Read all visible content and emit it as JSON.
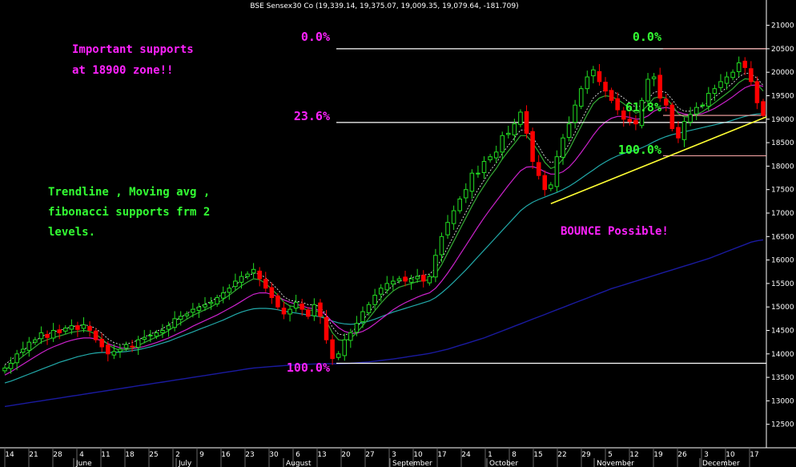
{
  "colors": {
    "background": "#000000",
    "up_candle": "#22dd22",
    "down_candle": "#ff0000",
    "ma_fast": "#33aa33",
    "ma_mid": "#cc22cc",
    "ma_slow": "#22aaaa",
    "ma_long": "#1a1aa0",
    "trendline": "#ffff33",
    "fib_white": "#ffffff",
    "fib_pink": "#ffaaaa",
    "label_magenta": "#ff22ff",
    "label_green": "#33ff33"
  },
  "chart_data": {
    "type": "candlestick",
    "title": "BSE Sensex30 Co (19,339.14, 19,375.07, 19,009.35, 19,079.64, -181.709)",
    "ylim": [
      12000,
      21300
    ],
    "y_ticks": [
      "12500",
      "13000",
      "13500",
      "14000",
      "14500",
      "15000",
      "15500",
      "16000",
      "16500",
      "17000",
      "17500",
      "18000",
      "18500",
      "19000",
      "19500",
      "20000",
      "20500",
      "21000"
    ],
    "x_ticks": [
      "14",
      "21",
      "28",
      "4",
      "11",
      "18",
      "25",
      "2",
      "9",
      "16",
      "23",
      "30",
      "6",
      "13",
      "20",
      "27",
      "3",
      "10",
      "17",
      "24",
      "1",
      "8",
      "15",
      "22",
      "29",
      "5",
      "12",
      "19",
      "26",
      "3",
      "10",
      "17"
    ],
    "months": [
      "June",
      "July",
      "August",
      "September",
      "October",
      "November",
      "December"
    ],
    "candles_close": [
      13700,
      13800,
      14000,
      14100,
      14250,
      14300,
      14450,
      14350,
      14500,
      14450,
      14550,
      14600,
      14520,
      14620,
      14500,
      14300,
      14150,
      14000,
      14050,
      14100,
      14200,
      14150,
      14300,
      14350,
      14400,
      14450,
      14500,
      14600,
      14750,
      14800,
      14850,
      14950,
      15000,
      15050,
      15100,
      15200,
      15300,
      15400,
      15550,
      15650,
      15700,
      15800,
      15600,
      15400,
      15200,
      15000,
      14850,
      14950,
      15100,
      14950,
      14800,
      15050,
      14800,
      14300,
      13900,
      14000,
      14300,
      14450,
      14650,
      14900,
      15050,
      15250,
      15400,
      15500,
      15550,
      15600,
      15550,
      15600,
      15650,
      15550,
      15650,
      16100,
      16500,
      16800,
      17050,
      17300,
      17500,
      17850,
      17850,
      18100,
      18200,
      18300,
      18650,
      18700,
      18900,
      19150,
      18700,
      18100,
      17800,
      17500,
      17600,
      18200,
      18600,
      18900,
      19300,
      19650,
      19900,
      20050,
      19800,
      19600,
      19400,
      19200,
      19000,
      18950,
      18900,
      19400,
      19850,
      19900,
      19450,
      19300,
      18800,
      18600,
      18950,
      19100,
      19250,
      19300,
      19550,
      19650,
      19800,
      19900,
      20000,
      20200,
      20100,
      19800,
      19350,
      19080
    ],
    "ma_fast": [
      13650,
      13750,
      13850,
      13950,
      14050,
      14150,
      14250,
      14300,
      14350,
      14380,
      14420,
      14460,
      14480,
      14500,
      14480,
      14420,
      14320,
      14200,
      14120,
      14080,
      14090,
      14120,
      14180,
      14240,
      14300,
      14360,
      14420,
      14500,
      14580,
      14660,
      14740,
      14820,
      14880,
      14940,
      15000,
      15080,
      15160,
      15250,
      15350,
      15450,
      15530,
      15600,
      15580,
      15500,
      15380,
      15250,
      15100,
      15020,
      15000,
      14980,
      14930,
      14930,
      14880,
      14700,
      14450,
      14300,
      14280,
      14330,
      14450,
      14600,
      14760,
      14920,
      15080,
      15220,
      15340,
      15420,
      15460,
      15500,
      15540,
      15560,
      15580,
      15700,
      15900,
      16150,
      16400,
      16650,
      16900,
      17150,
      17380,
      17580,
      17780,
      17950,
      18150,
      18320,
      18480,
      18650,
      18650,
      18500,
      18300,
      18080,
      17950,
      18000,
      18150,
      18350,
      18600,
      18850,
      19100,
      19330,
      19450,
      19500,
      19480,
      19420,
      19330,
      19230,
      19130,
      19170,
      19300,
      19450,
      19480,
      19450,
      19300,
      19120,
      19050,
      19050,
      19100,
      19160,
      19250,
      19350,
      19450,
      19550,
      19650,
      19780,
      19860,
      19850,
      19750,
      19600
    ],
    "ma_mid": [
      13550,
      13620,
      13700,
      13780,
      13860,
      13940,
      14020,
      14090,
      14150,
      14200,
      14250,
      14290,
      14320,
      14340,
      14340,
      14320,
      14280,
      14220,
      14170,
      14130,
      14110,
      14110,
      14130,
      14160,
      14200,
      14240,
      14290,
      14340,
      14400,
      14460,
      14520,
      14590,
      14650,
      14710,
      14770,
      14830,
      14900,
      14970,
      15040,
      15120,
      15200,
      15270,
      15300,
      15300,
      15270,
      15220,
      15150,
      15100,
      15060,
      15020,
      14980,
      14960,
      14920,
      14820,
      14680,
      14560,
      14480,
      14440,
      14440,
      14480,
      14550,
      14640,
      14740,
      14840,
      14940,
      15020,
      15090,
      15150,
      15210,
      15260,
      15300,
      15400,
      15550,
      15720,
      15910,
      16110,
      16310,
      16510,
      16710,
      16900,
      17080,
      17250,
      17420,
      17590,
      17750,
      17900,
      17980,
      17990,
      17950,
      17880,
      17830,
      17830,
      17880,
      17980,
      18120,
      18290,
      18470,
      18660,
      18820,
      18940,
      19020,
      19060,
      19060,
      19040,
      19000,
      19010,
      19070,
      19170,
      19230,
      19250,
      19220,
      19150,
      19110,
      19090,
      19100,
      19120,
      19170,
      19230,
      19310,
      19390,
      19480,
      19580,
      19670,
      19720,
      19730,
      19700
    ],
    "ma_slow": [
      13380,
      13420,
      13470,
      13520,
      13570,
      13620,
      13670,
      13720,
      13770,
      13820,
      13860,
      13900,
      13940,
      13970,
      14000,
      14020,
      14030,
      14030,
      14030,
      14040,
      14050,
      14070,
      14090,
      14120,
      14150,
      14190,
      14230,
      14270,
      14320,
      14370,
      14420,
      14470,
      14520,
      14570,
      14620,
      14670,
      14720,
      14780,
      14840,
      14890,
      14930,
      14960,
      14970,
      14970,
      14960,
      14940,
      14910,
      14890,
      14870,
      14850,
      14830,
      14810,
      14790,
      14750,
      14700,
      14660,
      14640,
      14630,
      14640,
      14660,
      14700,
      14740,
      14790,
      14840,
      14890,
      14930,
      14970,
      15010,
      15050,
      15090,
      15130,
      15200,
      15300,
      15410,
      15530,
      15660,
      15790,
      15930,
      16070,
      16210,
      16350,
      16490,
      16630,
      16770,
      16910,
      17050,
      17150,
      17230,
      17290,
      17340,
      17390,
      17440,
      17500,
      17570,
      17650,
      17740,
      17830,
      17920,
      18010,
      18090,
      18160,
      18220,
      18270,
      18310,
      18340,
      18390,
      18450,
      18520,
      18580,
      18630,
      18670,
      18700,
      18730,
      18760,
      18790,
      18820,
      18850,
      18880,
      18910,
      18940,
      18980,
      19020,
      19060,
      19090,
      19110,
      19120
    ],
    "ma_long": [
      12880,
      12900,
      12920,
      12940,
      12960,
      12980,
      13000,
      13020,
      13040,
      13060,
      13080,
      13100,
      13120,
      13140,
      13160,
      13180,
      13200,
      13220,
      13240,
      13260,
      13280,
      13300,
      13320,
      13340,
      13360,
      13380,
      13400,
      13420,
      13440,
      13460,
      13480,
      13500,
      13520,
      13540,
      13560,
      13580,
      13600,
      13620,
      13640,
      13660,
      13680,
      13700,
      13710,
      13720,
      13730,
      13740,
      13750,
      13760,
      13770,
      13775,
      13780,
      13785,
      13790,
      13790,
      13790,
      13790,
      13795,
      13800,
      13810,
      13820,
      13830,
      13845,
      13860,
      13875,
      13890,
      13910,
      13930,
      13950,
      13970,
      13990,
      14010,
      14040,
      14070,
      14100,
      14140,
      14180,
      14220,
      14260,
      14300,
      14340,
      14390,
      14440,
      14490,
      14540,
      14590,
      14640,
      14690,
      14740,
      14790,
      14840,
      14890,
      14940,
      14990,
      15040,
      15090,
      15140,
      15190,
      15240,
      15290,
      15340,
      15390,
      15430,
      15470,
      15510,
      15550,
      15590,
      15630,
      15670,
      15710,
      15750,
      15790,
      15830,
      15870,
      15910,
      15950,
      15990,
      16030,
      16080,
      16130,
      16180,
      16230,
      16280,
      16330,
      16380,
      16410,
      16430
    ],
    "fib_left": [
      {
        "label": "0.0%",
        "value": 20500
      },
      {
        "label": "23.6%",
        "value": 18930
      },
      {
        "label": "100.0%",
        "value": 13800
      }
    ],
    "fib_right": [
      {
        "label": "0.0%",
        "value": 20500
      },
      {
        "label": "61.8%",
        "value": 19080
      },
      {
        "label": "100.0%",
        "value": 18220
      }
    ],
    "trendline": {
      "from": [
        90,
        17200
      ],
      "to": [
        125,
        19050
      ]
    },
    "annotations": {
      "supports": [
        "Important supports",
        "at 18900 zone!!"
      ],
      "trend": [
        "Trendline , Moving avg ,",
        "fibonacci supports frm 2",
        "levels."
      ],
      "bounce": "BOUNCE Possible!"
    }
  }
}
